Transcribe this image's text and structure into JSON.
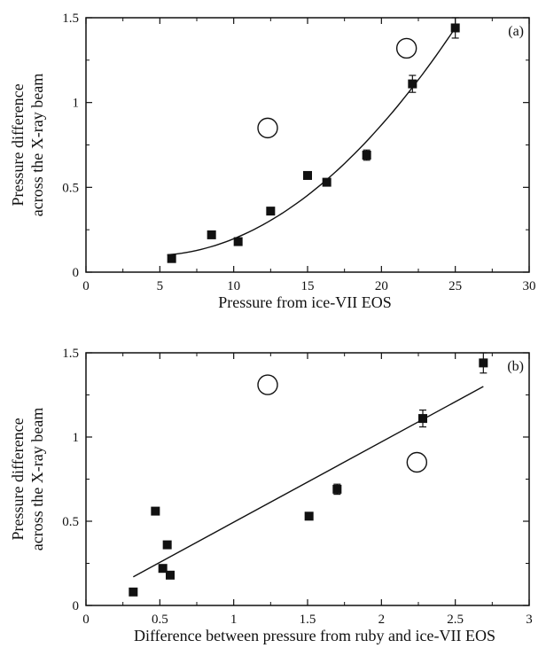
{
  "chart_data": [
    {
      "type": "scatter",
      "panel_label": "(a)",
      "xlabel": "Pressure from ice-VII EOS",
      "ylabel": "Pressure difference across the X-ray beam",
      "xlim": [
        0,
        30
      ],
      "ylim": [
        0,
        1.5
      ],
      "x_ticks": [
        "0",
        "5",
        "10",
        "15",
        "20",
        "25",
        "30"
      ],
      "y_ticks": [
        "0",
        "0.5",
        "1",
        "1.5"
      ],
      "series": [
        {
          "marker": "filled-square",
          "points": [
            {
              "x": 5.8,
              "y": 0.08
            },
            {
              "x": 8.5,
              "y": 0.22
            },
            {
              "x": 10.3,
              "y": 0.18
            },
            {
              "x": 12.5,
              "y": 0.36
            },
            {
              "x": 15.0,
              "y": 0.57,
              "err": 0.02
            },
            {
              "x": 16.3,
              "y": 0.53
            },
            {
              "x": 19.0,
              "y": 0.69,
              "err": 0.03
            },
            {
              "x": 22.1,
              "y": 1.11,
              "err": 0.05
            },
            {
              "x": 25.0,
              "y": 1.44,
              "err": 0.06
            }
          ]
        },
        {
          "marker": "open-circle",
          "points": [
            {
              "x": 12.3,
              "y": 0.85
            },
            {
              "x": 21.7,
              "y": 1.32
            }
          ]
        }
      ],
      "fit": {
        "type": "curve",
        "from_x": 5.5,
        "to_x": 25.0,
        "x": [
          5.5,
          10.0,
          15.0,
          20.0,
          25.0
        ],
        "y": [
          0.09,
          0.22,
          0.45,
          0.85,
          1.45
        ]
      },
      "grid": false
    },
    {
      "type": "scatter",
      "panel_label": "(b)",
      "xlabel": "Difference between pressure from ruby and ice-VII EOS",
      "ylabel": "Pressure difference across the X-ray beam",
      "xlim": [
        0,
        3
      ],
      "ylim": [
        0,
        1.5
      ],
      "x_ticks": [
        "0",
        "0.5",
        "1",
        "1.5",
        "2",
        "2.5",
        "3"
      ],
      "y_ticks": [
        "0",
        "0.5",
        "1",
        "1.5"
      ],
      "series": [
        {
          "marker": "filled-square",
          "points": [
            {
              "x": 0.32,
              "y": 0.08
            },
            {
              "x": 0.47,
              "y": 0.56
            },
            {
              "x": 0.52,
              "y": 0.22
            },
            {
              "x": 0.55,
              "y": 0.36
            },
            {
              "x": 0.57,
              "y": 0.18
            },
            {
              "x": 1.51,
              "y": 0.53
            },
            {
              "x": 1.7,
              "y": 0.69,
              "err": 0.03
            },
            {
              "x": 2.28,
              "y": 1.11,
              "err": 0.05
            },
            {
              "x": 2.69,
              "y": 1.44,
              "err": 0.06
            }
          ]
        },
        {
          "marker": "open-circle",
          "points": [
            {
              "x": 1.23,
              "y": 1.31
            },
            {
              "x": 2.24,
              "y": 0.85
            }
          ]
        }
      ],
      "fit": {
        "type": "line",
        "x": [
          0.32,
          2.69
        ],
        "y": [
          0.17,
          1.3
        ]
      },
      "grid": false
    }
  ]
}
